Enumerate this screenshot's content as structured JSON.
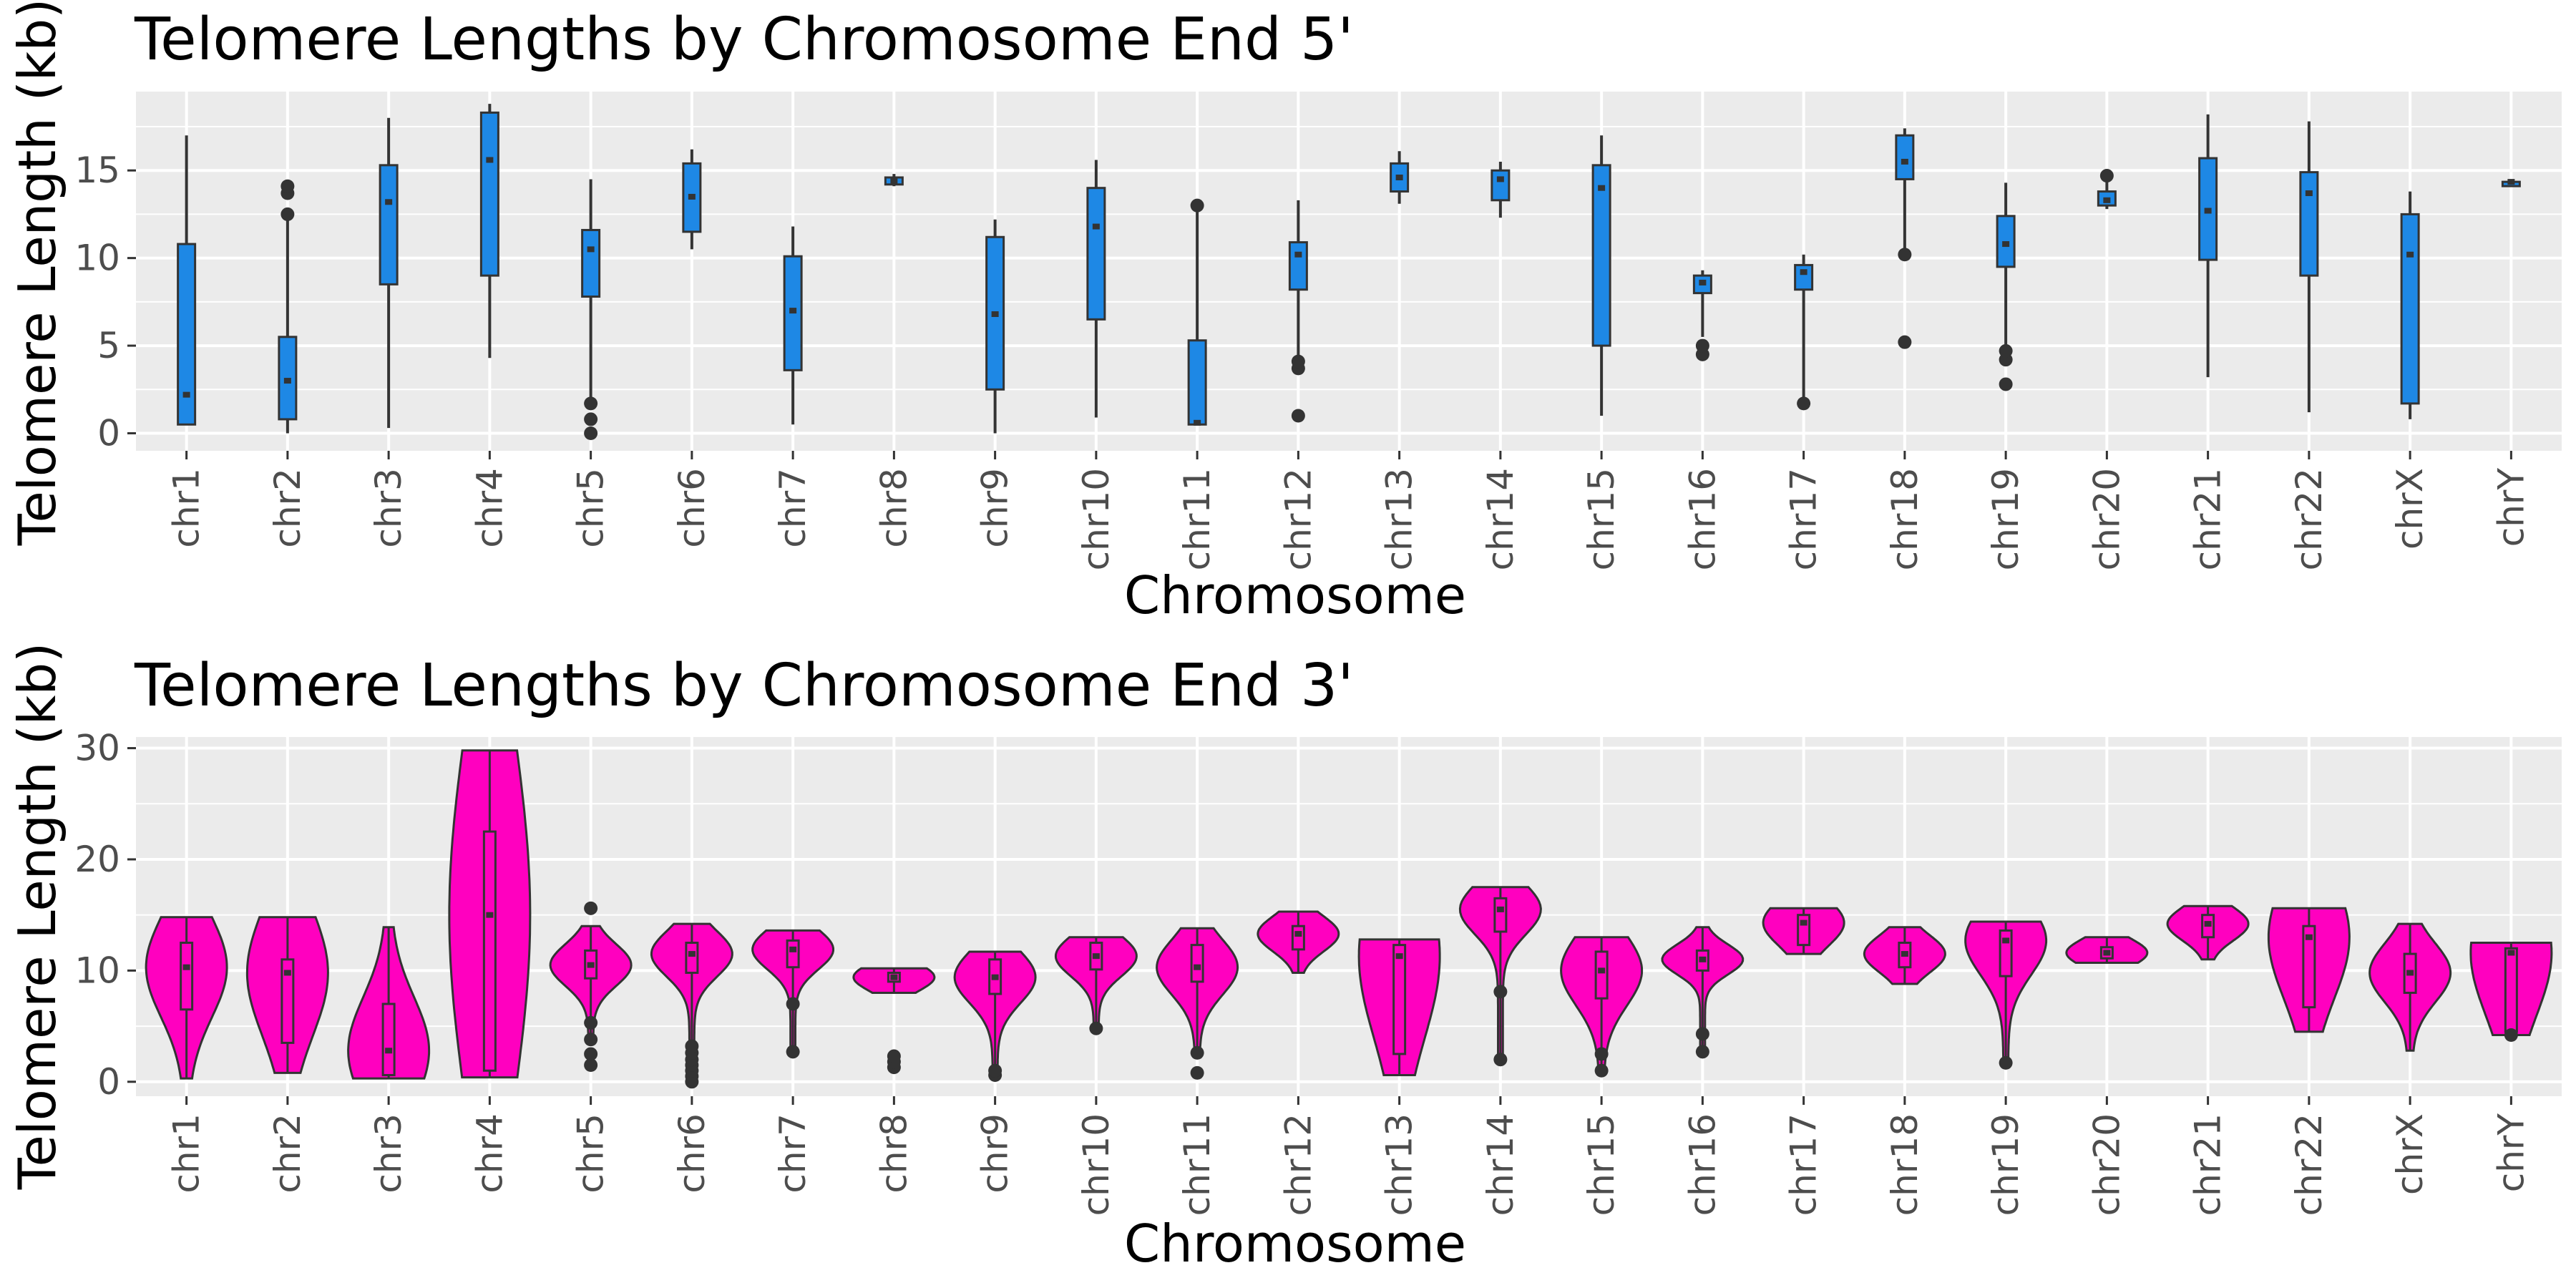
{
  "chart_data": [
    {
      "type": "violin",
      "title": "Telomere Lengths by Chromosome End 5'",
      "xlabel": "Chromosome",
      "ylabel": "Telomere Length (kb)",
      "ylim": [
        -1,
        19.5
      ],
      "yticks": [
        0,
        5,
        10,
        15
      ],
      "grid": true,
      "fill_color": "#1E88E5",
      "categories": [
        "chr1",
        "chr2",
        "chr3",
        "chr4",
        "chr5",
        "chr6",
        "chr7",
        "chr8",
        "chr9",
        "chr10",
        "chr11",
        "chr12",
        "chr13",
        "chr14",
        "chr15",
        "chr16",
        "chr17",
        "chr18",
        "chr19",
        "chr20",
        "chr21",
        "chr22",
        "chrX",
        "chrY"
      ],
      "series": [
        {
          "min": 0.5,
          "q1": 0.5,
          "median": 2.2,
          "q3": 10.8,
          "max": 17.0,
          "outliers": []
        },
        {
          "min": 0.0,
          "q1": 0.8,
          "median": 3.0,
          "q3": 5.5,
          "max": 12.5,
          "outliers": [
            12.5,
            13.7,
            14.1
          ]
        },
        {
          "min": 0.3,
          "q1": 8.5,
          "median": 13.2,
          "q3": 15.3,
          "max": 18.0,
          "outliers": []
        },
        {
          "min": 4.3,
          "q1": 9.0,
          "median": 15.6,
          "q3": 18.3,
          "max": 18.8,
          "outliers": []
        },
        {
          "min": 1.7,
          "q1": 7.8,
          "median": 10.5,
          "q3": 11.6,
          "max": 14.5,
          "outliers": [
            0.0,
            0.8,
            1.7
          ]
        },
        {
          "min": 10.5,
          "q1": 11.5,
          "median": 13.5,
          "q3": 15.4,
          "max": 16.2,
          "outliers": []
        },
        {
          "min": 0.5,
          "q1": 3.6,
          "median": 7.0,
          "q3": 10.1,
          "max": 11.8,
          "outliers": []
        },
        {
          "min": 14.1,
          "q1": 14.2,
          "median": 14.4,
          "q3": 14.6,
          "max": 14.8,
          "outliers": []
        },
        {
          "min": 0.0,
          "q1": 2.5,
          "median": 6.8,
          "q3": 11.2,
          "max": 12.2,
          "outliers": []
        },
        {
          "min": 0.9,
          "q1": 6.5,
          "median": 11.8,
          "q3": 14.0,
          "max": 15.6,
          "outliers": []
        },
        {
          "min": 0.5,
          "q1": 0.5,
          "median": 0.6,
          "q3": 5.3,
          "max": 13.0,
          "outliers": [
            13.0
          ]
        },
        {
          "min": 3.8,
          "q1": 8.2,
          "median": 10.2,
          "q3": 10.9,
          "max": 13.3,
          "outliers": [
            1.0,
            3.7,
            4.1
          ]
        },
        {
          "min": 13.1,
          "q1": 13.8,
          "median": 14.6,
          "q3": 15.4,
          "max": 16.1,
          "outliers": []
        },
        {
          "min": 12.3,
          "q1": 13.3,
          "median": 14.5,
          "q3": 15.0,
          "max": 15.5,
          "outliers": []
        },
        {
          "min": 1.0,
          "q1": 5.0,
          "median": 14.0,
          "q3": 15.3,
          "max": 17.0,
          "outliers": []
        },
        {
          "min": 5.5,
          "q1": 8.0,
          "median": 8.6,
          "q3": 9.0,
          "max": 9.3,
          "outliers": [
            4.5,
            5.0
          ]
        },
        {
          "min": 1.7,
          "q1": 8.2,
          "median": 9.2,
          "q3": 9.6,
          "max": 10.2,
          "outliers": [
            1.7
          ]
        },
        {
          "min": 10.2,
          "q1": 14.5,
          "median": 15.5,
          "q3": 17.0,
          "max": 17.4,
          "outliers": [
            5.2,
            10.2
          ]
        },
        {
          "min": 4.5,
          "q1": 9.5,
          "median": 10.8,
          "q3": 12.4,
          "max": 14.3,
          "outliers": [
            2.8,
            4.2,
            4.7
          ]
        },
        {
          "min": 12.8,
          "q1": 13.0,
          "median": 13.3,
          "q3": 13.8,
          "max": 14.7,
          "outliers": [
            14.7
          ]
        },
        {
          "min": 3.2,
          "q1": 9.9,
          "median": 12.7,
          "q3": 15.7,
          "max": 18.2,
          "outliers": []
        },
        {
          "min": 1.2,
          "q1": 9.0,
          "median": 13.7,
          "q3": 14.9,
          "max": 17.8,
          "outliers": []
        },
        {
          "min": 0.8,
          "q1": 1.7,
          "median": 10.2,
          "q3": 12.5,
          "max": 13.8,
          "outliers": []
        },
        {
          "min": 14.35,
          "q1": 14.35,
          "median": 14.35,
          "q3": 14.35,
          "max": 14.35,
          "outliers": []
        }
      ]
    },
    {
      "type": "violin",
      "title": "Telomere Lengths by Chromosome End 3'",
      "xlabel": "Chromosome",
      "ylabel": "Telomere Length (kb)",
      "ylim": [
        -1.3,
        31
      ],
      "yticks": [
        0,
        10,
        20,
        30
      ],
      "grid": true,
      "fill_color": "#FF00BF",
      "categories": [
        "chr1",
        "chr2",
        "chr3",
        "chr4",
        "chr5",
        "chr6",
        "chr7",
        "chr8",
        "chr9",
        "chr10",
        "chr11",
        "chr12",
        "chr13",
        "chr14",
        "chr15",
        "chr16",
        "chr17",
        "chr18",
        "chr19",
        "chr20",
        "chr21",
        "chr22",
        "chrX",
        "chrY"
      ],
      "series": [
        {
          "min": 0.3,
          "q1": 6.5,
          "median": 10.3,
          "q3": 12.5,
          "max": 14.8,
          "outliers": []
        },
        {
          "min": 0.8,
          "q1": 3.5,
          "median": 9.8,
          "q3": 11.0,
          "max": 14.8,
          "outliers": []
        },
        {
          "min": 0.3,
          "q1": 0.6,
          "median": 2.8,
          "q3": 7.0,
          "max": 13.9,
          "outliers": []
        },
        {
          "min": 0.4,
          "q1": 1.0,
          "median": 15.0,
          "q3": 22.5,
          "max": 29.8,
          "outliers": []
        },
        {
          "min": 4.0,
          "q1": 9.3,
          "median": 10.5,
          "q3": 11.8,
          "max": 14.0,
          "outliers": [
            1.5,
            2.5,
            3.8,
            5.3,
            15.6
          ]
        },
        {
          "min": 3.0,
          "q1": 9.8,
          "median": 11.5,
          "q3": 12.5,
          "max": 14.2,
          "outliers": [
            0.0,
            0.5,
            1.0,
            1.5,
            2.0,
            2.6,
            3.2
          ]
        },
        {
          "min": 2.7,
          "q1": 10.3,
          "median": 11.9,
          "q3": 12.7,
          "max": 13.6,
          "outliers": [
            2.7,
            7.0
          ]
        },
        {
          "min": 8.0,
          "q1": 9.0,
          "median": 9.4,
          "q3": 9.8,
          "max": 10.2,
          "outliers": [
            1.3,
            1.8,
            2.3
          ]
        },
        {
          "min": 0.6,
          "q1": 7.9,
          "median": 9.4,
          "q3": 11.0,
          "max": 11.7,
          "outliers": [
            0.6,
            1.0
          ]
        },
        {
          "min": 4.8,
          "q1": 10.1,
          "median": 11.3,
          "q3": 12.5,
          "max": 13.0,
          "outliers": [
            4.8
          ]
        },
        {
          "min": 2.5,
          "q1": 9.0,
          "median": 10.3,
          "q3": 12.3,
          "max": 13.8,
          "outliers": [
            0.8,
            2.6
          ]
        },
        {
          "min": 9.8,
          "q1": 11.9,
          "median": 13.3,
          "q3": 14.0,
          "max": 15.3,
          "outliers": []
        },
        {
          "min": 0.6,
          "q1": 2.5,
          "median": 11.3,
          "q3": 12.3,
          "max": 12.8,
          "outliers": []
        },
        {
          "min": 2.0,
          "q1": 13.5,
          "median": 15.5,
          "q3": 16.5,
          "max": 17.5,
          "outliers": [
            2.0,
            8.1
          ]
        },
        {
          "min": 1.0,
          "q1": 7.5,
          "median": 10.0,
          "q3": 11.7,
          "max": 13.0,
          "outliers": [
            1.0,
            2.5
          ]
        },
        {
          "min": 2.7,
          "q1": 10.0,
          "median": 11.0,
          "q3": 11.8,
          "max": 13.9,
          "outliers": [
            2.7,
            4.3
          ]
        },
        {
          "min": 11.5,
          "q1": 12.3,
          "median": 14.3,
          "q3": 15.0,
          "max": 15.6,
          "outliers": []
        },
        {
          "min": 8.8,
          "q1": 10.3,
          "median": 11.5,
          "q3": 12.5,
          "max": 13.9,
          "outliers": []
        },
        {
          "min": 1.7,
          "q1": 9.5,
          "median": 12.7,
          "q3": 13.6,
          "max": 14.4,
          "outliers": [
            1.7
          ]
        },
        {
          "min": 10.7,
          "q1": 11.1,
          "median": 11.6,
          "q3": 12.1,
          "max": 13.0,
          "outliers": []
        },
        {
          "min": 11.0,
          "q1": 13.0,
          "median": 14.2,
          "q3": 15.0,
          "max": 15.8,
          "outliers": []
        },
        {
          "min": 4.5,
          "q1": 6.7,
          "median": 13.0,
          "q3": 14.0,
          "max": 15.6,
          "outliers": []
        },
        {
          "min": 2.8,
          "q1": 8.0,
          "median": 9.8,
          "q3": 11.5,
          "max": 14.2,
          "outliers": []
        },
        {
          "min": 4.2,
          "q1": 4.5,
          "median": 11.6,
          "q3": 12.0,
          "max": 12.5,
          "outliers": [
            4.2
          ]
        }
      ]
    }
  ]
}
